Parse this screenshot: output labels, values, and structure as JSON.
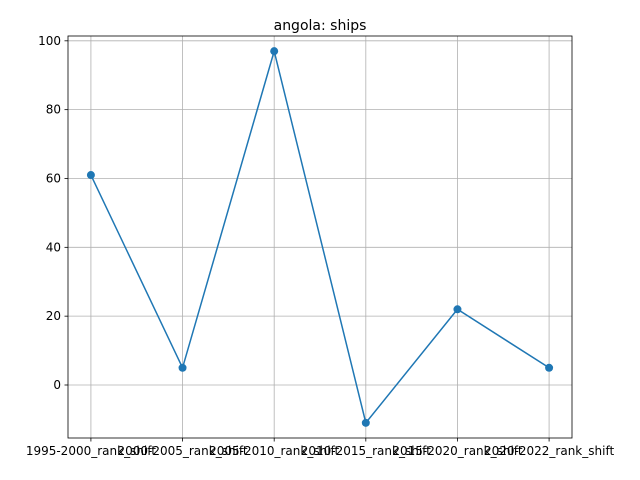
{
  "chart_data": {
    "type": "line",
    "title": "angola: ships",
    "xlabel": "",
    "ylabel": "",
    "categories": [
      "1995-2000_rank_shift",
      "2000-2005_rank_shift",
      "2005-2010_rank_shift",
      "2010-2015_rank_shift",
      "2015-2020_rank_shift",
      "2020-2022_rank_shift"
    ],
    "series": [
      {
        "values": [
          61,
          5,
          97,
          -11,
          22,
          5
        ]
      }
    ],
    "ylim": [
      -15.4,
      101.4
    ],
    "yticks": [
      "0",
      "20",
      "40",
      "60",
      "80",
      "100"
    ],
    "grid": true,
    "legend": "none",
    "colors": {
      "line": "#1f77b4",
      "grid": "#b0b0b0",
      "axis": "#000000"
    }
  }
}
